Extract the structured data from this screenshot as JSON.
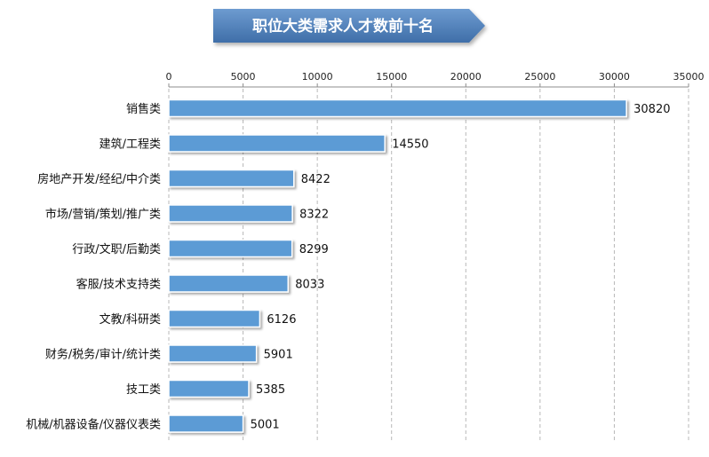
{
  "chart_data": {
    "type": "bar",
    "orientation": "horizontal",
    "title": "职位大类需求人才数前十名",
    "categories": [
      "销售类",
      "建筑/工程类",
      "房地产开发/经纪/中介类",
      "市场/营销/策划/推广类",
      "行政/文职/后勤类",
      "客服/技术支持类",
      "文教/科研类",
      "财务/税务/审计/统计类",
      "技工类",
      "机械/机器设备/仪器仪表类"
    ],
    "values": [
      30820,
      14550,
      8422,
      8322,
      8299,
      8033,
      6126,
      5901,
      5385,
      5001
    ],
    "xlim": [
      0,
      35000
    ],
    "xticks": [
      0,
      5000,
      10000,
      15000,
      20000,
      25000,
      30000,
      35000
    ],
    "xtick_labels": [
      "0",
      "5000",
      "10000",
      "15000",
      "20000",
      "25000",
      "30000",
      "35000"
    ],
    "data_labels": [
      "30820",
      "14550",
      "8422",
      "8322",
      "8299",
      "8033",
      "6126",
      "5901",
      "5385",
      "5001"
    ],
    "axis_position": "top",
    "grid": "vertical-dashed",
    "legend": "none",
    "bar_color": "#5b9bd5",
    "bar_edge_color": "#ffffff",
    "title_banner_color": "#4f7fb8"
  }
}
